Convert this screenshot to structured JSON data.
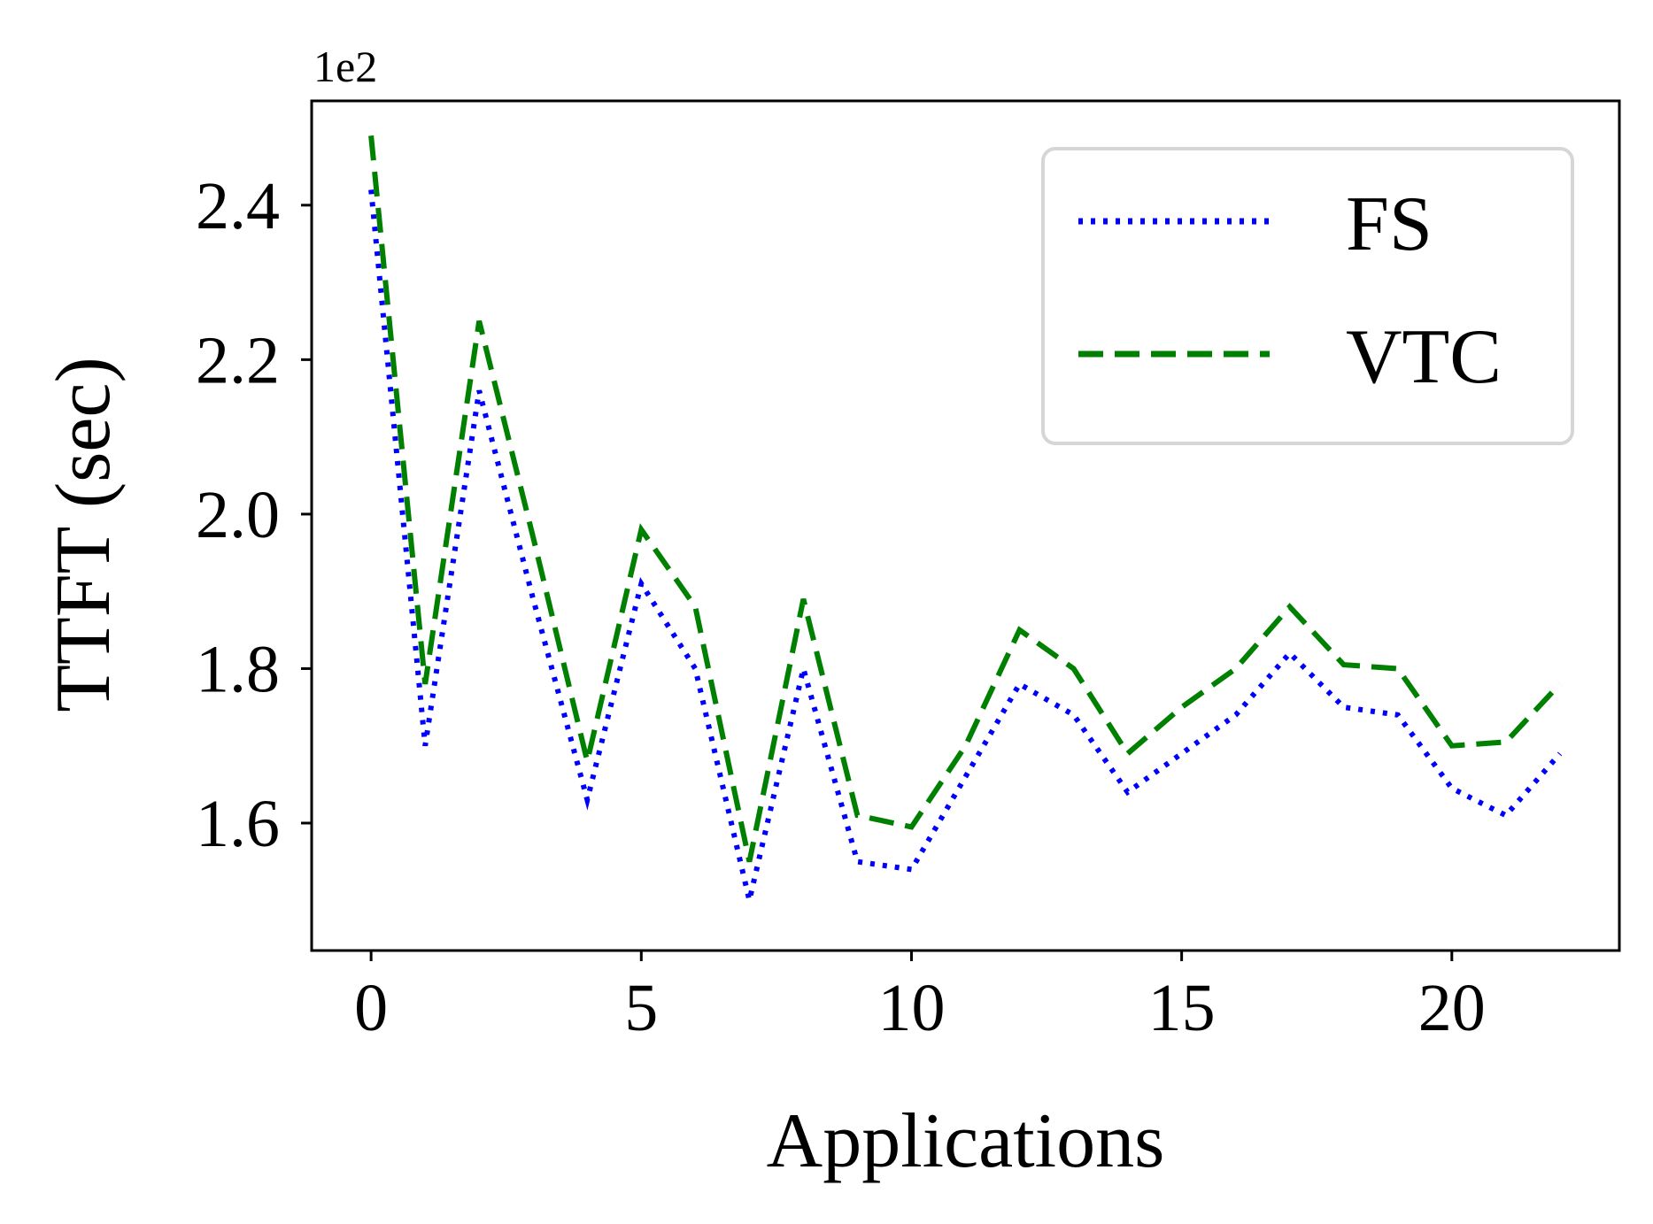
{
  "chart_data": {
    "type": "line",
    "title": "",
    "xlabel": "Applications",
    "ylabel": "TTFT (sec)",
    "y_offset_label": "1e2",
    "xlim": [
      -1.1,
      23.1
    ],
    "ylim": [
      1.435,
      2.535
    ],
    "x_ticks": [
      0,
      5,
      10,
      15,
      20
    ],
    "x_tick_labels": [
      "0",
      "5",
      "10",
      "15",
      "20"
    ],
    "y_ticks": [
      1.6,
      1.8,
      2.0,
      2.2,
      2.4
    ],
    "y_tick_labels": [
      "1.6",
      "1.8",
      "2.0",
      "2.2",
      "2.4"
    ],
    "grid": false,
    "legend_position": "top-right",
    "x": [
      0,
      1,
      2,
      3,
      4,
      5,
      6,
      7,
      8,
      9,
      10,
      11,
      12,
      13,
      14,
      15,
      16,
      17,
      18,
      19,
      20,
      21,
      22
    ],
    "series": [
      {
        "name": "FS",
        "color": "#0000ff",
        "line_style": "dotted",
        "values": [
          2.42,
          1.7,
          2.16,
          1.89,
          1.63,
          1.91,
          1.8,
          1.5,
          1.8,
          1.55,
          1.54,
          1.66,
          1.78,
          1.74,
          1.64,
          1.69,
          1.74,
          1.82,
          1.75,
          1.74,
          1.645,
          1.61,
          1.69
        ]
      },
      {
        "name": "VTC",
        "color": "#008000",
        "line_style": "dashed",
        "values": [
          2.49,
          1.78,
          2.25,
          1.97,
          1.68,
          1.98,
          1.88,
          1.55,
          1.89,
          1.61,
          1.595,
          1.7,
          1.85,
          1.8,
          1.69,
          1.75,
          1.8,
          1.88,
          1.805,
          1.8,
          1.7,
          1.705,
          1.78
        ]
      }
    ]
  }
}
